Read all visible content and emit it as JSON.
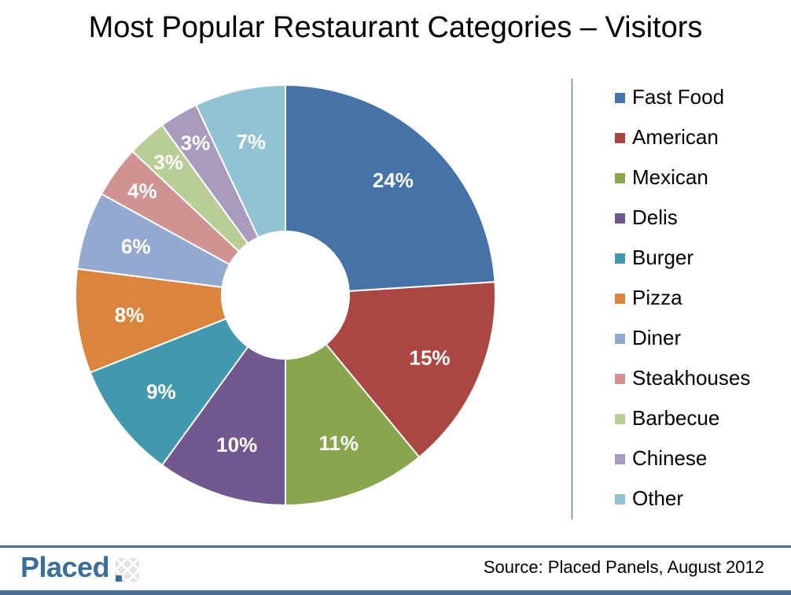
{
  "title": "Most Popular Restaurant Categories – Visitors",
  "source": "Source: Placed Panels, August 2012",
  "logo_text": "Placed",
  "chart_data": {
    "type": "pie",
    "donut": true,
    "title": "Most Popular Restaurant Categories – Visitors",
    "legend_position": "right",
    "categories": [
      "Fast Food",
      "American",
      "Mexican",
      "Delis",
      "Burger",
      "Pizza",
      "Diner",
      "Steakhouses",
      "Barbecue",
      "Chinese",
      "Other"
    ],
    "values": [
      24,
      15,
      11,
      10,
      9,
      8,
      6,
      4,
      3,
      3,
      7
    ],
    "labels": [
      "24%",
      "15%",
      "11%",
      "10%",
      "9%",
      "8%",
      "6%",
      "4%",
      "3%",
      "3%",
      "7%"
    ],
    "colors": [
      "#4572a7",
      "#aa4643",
      "#89a54e",
      "#71588f",
      "#4198af",
      "#db843d",
      "#93a9cf",
      "#d19392",
      "#b9cd96",
      "#a99bbd",
      "#92c3d4"
    ]
  }
}
